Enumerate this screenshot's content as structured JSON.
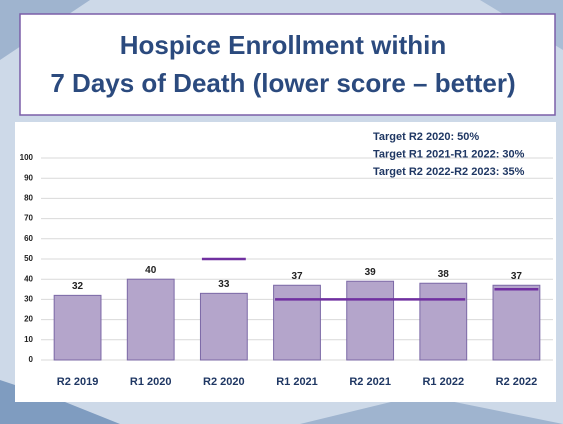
{
  "chart_data": {
    "type": "bar",
    "title_lines": [
      "Hospice Enrollment within",
      "7 Days of Death (lower score – better)"
    ],
    "categories": [
      "R2 2019",
      "R1 2020",
      "R2 2020",
      "R1 2021",
      "R2 2021",
      "R1 2022",
      "R2 2022"
    ],
    "values": [
      32,
      40,
      33,
      37,
      39,
      38,
      37
    ],
    "color": "#b4a5cb",
    "edge_color": "#7b68a6",
    "ylim": [
      0,
      100
    ],
    "yticks": [
      0,
      10,
      20,
      30,
      40,
      50,
      60,
      70,
      80,
      90,
      100
    ],
    "grid": true,
    "targets": [
      {
        "label": "Target R2 2020: 50%",
        "value": 50,
        "from": "R2 2020",
        "to": "R2 2020"
      },
      {
        "label": "Target R1 2021-R1 2022: 30%",
        "value": 30,
        "from": "R1 2021",
        "to": "R1 2022"
      },
      {
        "label": "Target R2 2022-R2 2023: 35%",
        "value": 35,
        "from": "R2 2022",
        "to": "R2 2022"
      }
    ],
    "target_color": "#7030a0"
  }
}
